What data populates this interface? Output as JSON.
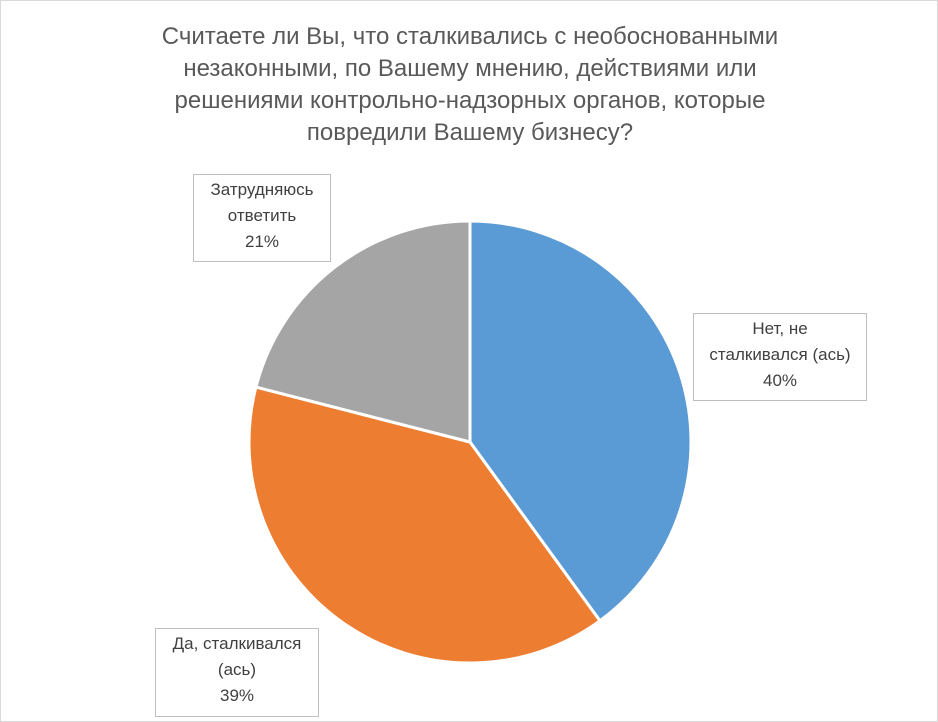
{
  "chart_data": {
    "type": "pie",
    "title_lines": [
      "Считаете ли Вы, что сталкивались с необоснованными",
      "незаконными, по Вашему мнению, действиями или",
      "решениями контрольно-надзорных органов, которые",
      "повредили Вашему бизнесу?"
    ],
    "slices": [
      {
        "label_lines": [
          "Нет, не",
          "сталкивался (ась)"
        ],
        "value": 40,
        "value_label": "40%",
        "color": "#5b9bd5"
      },
      {
        "label_lines": [
          "Да, сталкивался",
          "(ась)"
        ],
        "value": 39,
        "value_label": "39%",
        "color": "#ed7d31"
      },
      {
        "label_lines": [
          "Затрудняюсь",
          "ответить"
        ],
        "value": 21,
        "value_label": "21%",
        "color": "#a5a5a5"
      }
    ],
    "start_angle": "12 o'clock, clockwise",
    "legend": "none",
    "colors": {
      "separator": "#ffffff",
      "label_border": "#bfbfbf"
    }
  }
}
